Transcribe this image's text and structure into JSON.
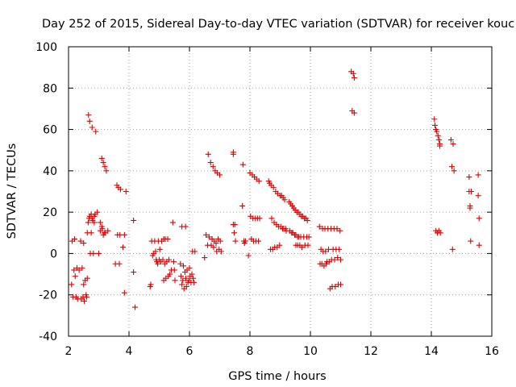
{
  "chart_data": {
    "type": "scatter",
    "title": "Day 252 of 2015, Sidereal Day-to-day VTEC variation (SDTVAR) for receiver kouc",
    "xlabel": "GPS time / hours",
    "ylabel": "SDTVAR / TECUs",
    "xlim": [
      2,
      16
    ],
    "ylim": [
      -40,
      100
    ],
    "xticks": [
      2,
      4,
      6,
      8,
      10,
      12,
      14,
      16
    ],
    "yticks": [
      -40,
      -20,
      0,
      20,
      40,
      60,
      80,
      100
    ],
    "xtick_labels": [
      "2",
      "4",
      "6",
      "8",
      "10",
      "12",
      "14",
      "16"
    ],
    "ytick_labels": [
      "-40",
      "-20",
      "0",
      "20",
      "40",
      "60",
      "80",
      "100"
    ],
    "grid": true,
    "marker": "+",
    "color": "#e00000",
    "points": [
      [
        2.1,
        -15
      ],
      [
        2.12,
        6
      ],
      [
        2.15,
        -21
      ],
      [
        2.18,
        -8
      ],
      [
        2.2,
        7
      ],
      [
        2.22,
        -11
      ],
      [
        2.25,
        -21
      ],
      [
        2.28,
        -7
      ],
      [
        2.3,
        -22
      ],
      [
        2.35,
        -8
      ],
      [
        2.4,
        6
      ],
      [
        2.42,
        -22
      ],
      [
        2.45,
        -7
      ],
      [
        2.48,
        -21
      ],
      [
        2.5,
        5
      ],
      [
        2.5,
        -15
      ],
      [
        2.52,
        -23
      ],
      [
        2.55,
        -13
      ],
      [
        2.58,
        -20
      ],
      [
        2.6,
        -21
      ],
      [
        2.62,
        10
      ],
      [
        2.62,
        -12
      ],
      [
        2.65,
        15
      ],
      [
        2.66,
        67
      ],
      [
        2.68,
        17
      ],
      [
        2.7,
        64
      ],
      [
        2.7,
        18
      ],
      [
        2.72,
        0
      ],
      [
        2.75,
        19
      ],
      [
        2.75,
        10
      ],
      [
        2.78,
        61
      ],
      [
        2.78,
        17
      ],
      [
        2.8,
        16
      ],
      [
        2.82,
        0
      ],
      [
        2.85,
        18
      ],
      [
        2.85,
        15
      ],
      [
        2.88,
        19
      ],
      [
        2.9,
        59
      ],
      [
        2.95,
        20
      ],
      [
        3.0,
        0
      ],
      [
        3.05,
        15
      ],
      [
        3.05,
        11
      ],
      [
        3.1,
        46
      ],
      [
        3.1,
        13
      ],
      [
        3.12,
        12
      ],
      [
        3.15,
        44
      ],
      [
        3.15,
        9
      ],
      [
        3.18,
        10
      ],
      [
        3.2,
        42
      ],
      [
        3.22,
        10
      ],
      [
        3.25,
        40
      ],
      [
        3.3,
        11
      ],
      [
        3.55,
        -5
      ],
      [
        3.6,
        33
      ],
      [
        3.62,
        9
      ],
      [
        3.65,
        32
      ],
      [
        3.68,
        -5
      ],
      [
        3.7,
        9
      ],
      [
        3.72,
        31
      ],
      [
        3.8,
        3
      ],
      [
        3.85,
        9
      ],
      [
        3.9,
        30
      ],
      [
        3.85,
        -19
      ],
      [
        4.15,
        16
      ],
      [
        4.15,
        -9
      ],
      [
        4.2,
        -26
      ],
      [
        4.7,
        -16
      ],
      [
        4.72,
        -15
      ],
      [
        4.75,
        6
      ],
      [
        4.78,
        -1
      ],
      [
        4.82,
        0
      ],
      [
        4.85,
        6
      ],
      [
        4.88,
        1
      ],
      [
        4.9,
        -3
      ],
      [
        4.92,
        -4
      ],
      [
        4.95,
        -5
      ],
      [
        4.97,
        6
      ],
      [
        5.0,
        -3
      ],
      [
        5.02,
        2
      ],
      [
        5.05,
        -4
      ],
      [
        5.08,
        6
      ],
      [
        5.12,
        -3
      ],
      [
        5.15,
        7
      ],
      [
        5.15,
        -13
      ],
      [
        5.18,
        -5
      ],
      [
        5.2,
        7
      ],
      [
        5.22,
        -12
      ],
      [
        5.25,
        -4
      ],
      [
        5.28,
        7
      ],
      [
        5.3,
        -11
      ],
      [
        5.32,
        -3
      ],
      [
        5.35,
        -10
      ],
      [
        5.4,
        -8
      ],
      [
        5.45,
        15
      ],
      [
        5.48,
        -4
      ],
      [
        5.5,
        -8
      ],
      [
        5.52,
        -13
      ],
      [
        5.7,
        -5
      ],
      [
        5.72,
        -11
      ],
      [
        5.75,
        13
      ],
      [
        5.75,
        -15
      ],
      [
        5.78,
        -13
      ],
      [
        5.8,
        -6
      ],
      [
        5.82,
        -17
      ],
      [
        5.85,
        -9
      ],
      [
        5.87,
        13
      ],
      [
        5.88,
        -12
      ],
      [
        5.9,
        -16
      ],
      [
        5.92,
        -8
      ],
      [
        5.95,
        -14
      ],
      [
        5.98,
        -13
      ],
      [
        6.0,
        -7
      ],
      [
        6.02,
        -11
      ],
      [
        6.05,
        -14
      ],
      [
        6.08,
        -10
      ],
      [
        6.1,
        1
      ],
      [
        6.12,
        -12
      ],
      [
        6.15,
        -14
      ],
      [
        6.18,
        1
      ],
      [
        6.5,
        -2
      ],
      [
        6.55,
        9
      ],
      [
        6.6,
        4
      ],
      [
        6.62,
        48
      ],
      [
        6.65,
        8
      ],
      [
        6.7,
        44
      ],
      [
        6.72,
        4
      ],
      [
        6.75,
        7
      ],
      [
        6.78,
        42
      ],
      [
        6.8,
        3
      ],
      [
        6.82,
        6
      ],
      [
        6.85,
        40
      ],
      [
        6.88,
        5
      ],
      [
        6.9,
        1
      ],
      [
        6.92,
        39
      ],
      [
        6.95,
        7
      ],
      [
        6.98,
        2
      ],
      [
        7.0,
        38
      ],
      [
        7.02,
        6
      ],
      [
        7.05,
        1
      ],
      [
        7.45,
        49
      ],
      [
        7.45,
        48
      ],
      [
        7.45,
        14
      ],
      [
        7.48,
        10
      ],
      [
        7.5,
        14
      ],
      [
        7.52,
        6
      ],
      [
        7.75,
        23
      ],
      [
        7.77,
        43
      ],
      [
        7.8,
        6
      ],
      [
        7.82,
        5
      ],
      [
        7.85,
        6
      ],
      [
        7.95,
        -1
      ],
      [
        8.0,
        39
      ],
      [
        8.02,
        18
      ],
      [
        8.05,
        7
      ],
      [
        8.08,
        38
      ],
      [
        8.1,
        17
      ],
      [
        8.12,
        6
      ],
      [
        8.15,
        37
      ],
      [
        8.18,
        17
      ],
      [
        8.2,
        6
      ],
      [
        8.22,
        36
      ],
      [
        8.25,
        17
      ],
      [
        8.28,
        6
      ],
      [
        8.3,
        35
      ],
      [
        8.32,
        17
      ],
      [
        8.62,
        35
      ],
      [
        8.65,
        34
      ],
      [
        8.68,
        2
      ],
      [
        8.7,
        33
      ],
      [
        8.72,
        17
      ],
      [
        8.75,
        2
      ],
      [
        8.78,
        32
      ],
      [
        8.8,
        15
      ],
      [
        8.82,
        3
      ],
      [
        8.85,
        30
      ],
      [
        8.88,
        14
      ],
      [
        8.9,
        3
      ],
      [
        8.92,
        29
      ],
      [
        8.95,
        13
      ],
      [
        8.98,
        4
      ],
      [
        9.0,
        28
      ],
      [
        9.02,
        13
      ],
      [
        9.05,
        28
      ],
      [
        9.08,
        12
      ],
      [
        9.1,
        27
      ],
      [
        9.12,
        12
      ],
      [
        9.15,
        26
      ],
      [
        9.18,
        12
      ],
      [
        9.2,
        11
      ],
      [
        9.3,
        25
      ],
      [
        9.32,
        11
      ],
      [
        9.35,
        24
      ],
      [
        9.38,
        10
      ],
      [
        9.4,
        23
      ],
      [
        9.42,
        10
      ],
      [
        9.45,
        22
      ],
      [
        9.48,
        9
      ],
      [
        9.5,
        21
      ],
      [
        9.52,
        9
      ],
      [
        9.52,
        4
      ],
      [
        9.55,
        20
      ],
      [
        9.58,
        8
      ],
      [
        9.58,
        4
      ],
      [
        9.6,
        20
      ],
      [
        9.62,
        8
      ],
      [
        9.65,
        19
      ],
      [
        9.65,
        4
      ],
      [
        9.68,
        8
      ],
      [
        9.7,
        18
      ],
      [
        9.72,
        3
      ],
      [
        9.75,
        18
      ],
      [
        9.78,
        8
      ],
      [
        9.8,
        17
      ],
      [
        9.82,
        4
      ],
      [
        9.85,
        17
      ],
      [
        9.88,
        8
      ],
      [
        9.9,
        16
      ],
      [
        9.92,
        4
      ],
      [
        9.95,
        8
      ],
      [
        10.3,
        13
      ],
      [
        10.32,
        -5
      ],
      [
        10.35,
        2
      ],
      [
        10.38,
        -5
      ],
      [
        10.4,
        12
      ],
      [
        10.42,
        1
      ],
      [
        10.45,
        -6
      ],
      [
        10.48,
        12
      ],
      [
        10.5,
        1
      ],
      [
        10.52,
        -5
      ],
      [
        10.55,
        -4
      ],
      [
        10.58,
        12
      ],
      [
        10.6,
        2
      ],
      [
        10.62,
        -4
      ],
      [
        10.65,
        -17
      ],
      [
        10.68,
        12
      ],
      [
        10.7,
        -3
      ],
      [
        10.72,
        -16
      ],
      [
        10.75,
        2
      ],
      [
        10.78,
        12
      ],
      [
        10.8,
        -3
      ],
      [
        10.82,
        -16
      ],
      [
        10.85,
        2
      ],
      [
        10.88,
        12
      ],
      [
        10.9,
        -2
      ],
      [
        10.92,
        -15
      ],
      [
        10.95,
        2
      ],
      [
        10.98,
        11
      ],
      [
        11.0,
        -15
      ],
      [
        11.0,
        -3
      ],
      [
        11.35,
        88
      ],
      [
        11.38,
        69
      ],
      [
        11.42,
        87
      ],
      [
        11.45,
        68
      ],
      [
        11.45,
        85
      ],
      [
        14.1,
        65
      ],
      [
        14.12,
        62
      ],
      [
        14.15,
        60
      ],
      [
        14.15,
        11
      ],
      [
        14.18,
        59
      ],
      [
        14.2,
        10
      ],
      [
        14.22,
        57
      ],
      [
        14.25,
        55
      ],
      [
        14.25,
        11
      ],
      [
        14.28,
        53
      ],
      [
        14.28,
        52
      ],
      [
        14.3,
        10
      ],
      [
        14.65,
        55
      ],
      [
        14.68,
        42
      ],
      [
        14.7,
        2
      ],
      [
        14.72,
        53
      ],
      [
        14.75,
        40
      ],
      [
        15.25,
        37
      ],
      [
        15.25,
        30
      ],
      [
        15.28,
        23
      ],
      [
        15.28,
        22
      ],
      [
        15.3,
        6
      ],
      [
        15.32,
        30
      ],
      [
        15.55,
        38
      ],
      [
        15.55,
        28
      ],
      [
        15.58,
        17
      ],
      [
        15.58,
        4
      ]
    ]
  }
}
